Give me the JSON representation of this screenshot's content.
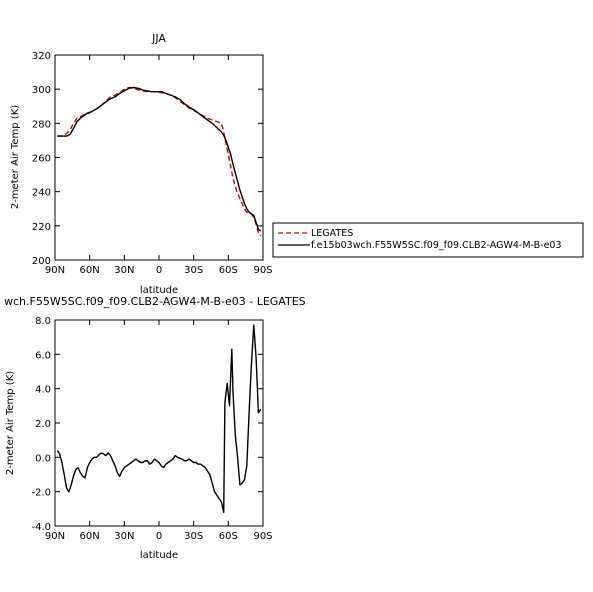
{
  "chart_data": [
    {
      "type": "line",
      "title": "JJA",
      "xlabel": "latitude",
      "ylabel": "2-meter Air Temp (K)",
      "xlim": [
        90,
        -90
      ],
      "ylim": [
        200,
        320
      ],
      "x_ticks": [
        90,
        60,
        30,
        0,
        -30,
        -60,
        -90
      ],
      "x_tick_labels": [
        "90N",
        "60N",
        "30N",
        "0",
        "30S",
        "60S",
        "90S"
      ],
      "y_ticks": [
        200,
        220,
        240,
        260,
        280,
        300,
        320
      ],
      "y_tick_labels": [
        "200",
        "220",
        "240",
        "260",
        "280",
        "300",
        "320"
      ],
      "legend": {
        "placement": "right"
      },
      "series": [
        {
          "name": "LEGATES",
          "color": "#cc0000",
          "dash": "dashed",
          "x": [
            88,
            84,
            80,
            77,
            74,
            71,
            68,
            65,
            62,
            58,
            54,
            50,
            46,
            42,
            38,
            34,
            30,
            26,
            22,
            18,
            14,
            10,
            6,
            2,
            -2,
            -6,
            -10,
            -14,
            -18,
            -22,
            -26,
            -30,
            -34,
            -38,
            -42,
            -46,
            -50,
            -54,
            -56,
            -58,
            -60,
            -62,
            -64,
            -66,
            -68,
            -70,
            -72,
            -74,
            -76,
            -78,
            -80,
            -82,
            -84,
            -86,
            -88
          ],
          "values": [
            272.5,
            272.5,
            274,
            276,
            280,
            283,
            284,
            285,
            285.5,
            287,
            288.5,
            290.5,
            293,
            295.5,
            296.5,
            298,
            300,
            301,
            300.5,
            299.5,
            299,
            298.5,
            298.5,
            298.5,
            298,
            297.5,
            296.5,
            295,
            293,
            291,
            289,
            287.5,
            286,
            284.5,
            283,
            282,
            281,
            280,
            275,
            268,
            262,
            255,
            248,
            243,
            239,
            236,
            233,
            230,
            228,
            227.5,
            227,
            225,
            221,
            216,
            214
          ]
        },
        {
          "name": "f.e15b03wch.F55W5SC.f09_f09.CLB2-AGW4-M-B-e03",
          "color": "#000000",
          "dash": "solid",
          "x": [
            88,
            84,
            80,
            77,
            74,
            71,
            68,
            65,
            62,
            58,
            54,
            50,
            46,
            42,
            38,
            34,
            30,
            26,
            22,
            18,
            14,
            10,
            6,
            2,
            -2,
            -6,
            -10,
            -14,
            -18,
            -22,
            -26,
            -30,
            -34,
            -38,
            -42,
            -46,
            -50,
            -54,
            -56,
            -58,
            -60,
            -62,
            -64,
            -66,
            -68,
            -70,
            -72,
            -74,
            -76,
            -78,
            -80,
            -82,
            -84,
            -86,
            -88
          ],
          "values": [
            272.5,
            272.5,
            272.5,
            273.5,
            277,
            281,
            283,
            284.5,
            286,
            287,
            288.5,
            290.5,
            292.5,
            294.5,
            295.5,
            297.5,
            299,
            300.5,
            301,
            300.5,
            299.5,
            299,
            298.5,
            298.5,
            298.5,
            297.5,
            296.5,
            295.5,
            294,
            291.5,
            289.5,
            288,
            286,
            284,
            282,
            280,
            277.5,
            275,
            273,
            270,
            266,
            262,
            256,
            251,
            246,
            241,
            237,
            233,
            230,
            228,
            227,
            226,
            222,
            218,
            217
          ]
        }
      ]
    },
    {
      "type": "line",
      "title": "wch.F55W5SC.f09_f09.CLB2-AGW4-M-B-e03 - LEGATES",
      "xlabel": "latitude",
      "ylabel": "2-meter Air Temp (K)",
      "xlim": [
        90,
        -90
      ],
      "ylim": [
        -4,
        8
      ],
      "x_ticks": [
        90,
        60,
        30,
        0,
        -30,
        -60,
        -90
      ],
      "x_tick_labels": [
        "90N",
        "60N",
        "30N",
        "0",
        "30S",
        "60S",
        "90S"
      ],
      "y_ticks": [
        -4,
        -2,
        0,
        2,
        4,
        6,
        8
      ],
      "y_tick_labels": [
        "-4.0",
        "-2.0",
        "0.0",
        "2.0",
        "4.0",
        "6.0",
        "8.0"
      ],
      "series": [
        {
          "color": "#000000",
          "dash": "solid",
          "x": [
            88,
            86,
            84,
            82,
            80,
            78,
            76,
            74,
            72,
            70,
            68,
            66,
            64,
            62,
            60,
            58,
            56,
            54,
            52,
            50,
            48,
            46,
            44,
            42,
            40,
            38,
            36,
            34,
            32,
            30,
            28,
            26,
            24,
            22,
            20,
            18,
            16,
            14,
            12,
            10,
            8,
            6,
            4,
            2,
            0,
            -2,
            -4,
            -6,
            -8,
            -10,
            -12,
            -14,
            -16,
            -18,
            -20,
            -22,
            -24,
            -26,
            -28,
            -30,
            -32,
            -34,
            -36,
            -38,
            -40,
            -42,
            -44,
            -46,
            -48,
            -50,
            -52,
            -54,
            -56,
            -57,
            -59,
            -61,
            -62,
            -63,
            -64,
            -66,
            -68,
            -70,
            -72,
            -74,
            -76,
            -78,
            -80,
            -82,
            -84,
            -86,
            -88
          ],
          "values": [
            0.4,
            0.2,
            -0.3,
            -1.0,
            -1.8,
            -2.0,
            -1.6,
            -1.1,
            -0.7,
            -0.6,
            -0.9,
            -1.1,
            -1.2,
            -0.6,
            -0.3,
            -0.1,
            0.0,
            0.0,
            0.15,
            0.25,
            0.2,
            0.1,
            0.25,
            0.1,
            -0.2,
            -0.5,
            -0.9,
            -1.1,
            -0.8,
            -0.6,
            -0.5,
            -0.4,
            -0.3,
            -0.2,
            -0.1,
            -0.2,
            -0.3,
            -0.3,
            -0.2,
            -0.2,
            -0.4,
            -0.3,
            -0.1,
            -0.2,
            -0.3,
            -0.5,
            -0.6,
            -0.4,
            -0.3,
            -0.2,
            -0.1,
            0.1,
            0.0,
            -0.05,
            -0.1,
            -0.2,
            -0.2,
            -0.1,
            -0.2,
            -0.3,
            -0.3,
            -0.4,
            -0.4,
            -0.5,
            -0.6,
            -0.8,
            -1.0,
            -1.5,
            -2.0,
            -2.2,
            -2.4,
            -2.6,
            -3.2,
            3.2,
            4.3,
            3.0,
            4.6,
            6.3,
            3.8,
            1.3,
            0.0,
            -1.6,
            -1.5,
            -1.3,
            -0.5,
            2.6,
            5.4,
            7.7,
            5.8,
            2.6,
            2.8
          ]
        }
      ]
    }
  ]
}
